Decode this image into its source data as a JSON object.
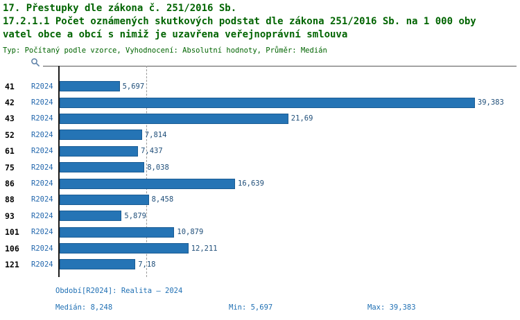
{
  "title": {
    "line1": "17. Přestupky dle zákona č. 251/2016 Sb.",
    "line2": "17.2.1.1 Počet oznámených skutkových podstat dle zákona 251/2016 Sb. na 1 000 oby",
    "line3": "vatel obce a obcí s nimiž je uzavřena veřejnoprávní smlouva",
    "meta": "Typ: Počítaný podle vzorce, Vyhodnocení: Absolutní hodnoty, Průměr: Medián"
  },
  "chart_data": {
    "type": "bar",
    "orientation": "horizontal",
    "title": "17.2.1.1 Počet oznámených skutkových podstat dle zákona 251/2016 Sb. na 1 000 obyvatel obce a obcí s nimiž je uzavřena veřejnoprávní smlouva",
    "categories": [
      "41",
      "42",
      "43",
      "52",
      "61",
      "75",
      "86",
      "88",
      "93",
      "101",
      "106",
      "121"
    ],
    "series": [
      {
        "name": "R2024",
        "values": [
          5.697,
          39.383,
          21.69,
          7.814,
          7.437,
          8.038,
          16.639,
          8.458,
          5.879,
          10.879,
          12.211,
          7.18
        ]
      }
    ],
    "value_labels": [
      "5,697",
      "39,383",
      "21,69",
      "7,814",
      "7,437",
      "8,038",
      "16,639",
      "8,458",
      "5,879",
      "10,879",
      "12,211",
      "7,18"
    ],
    "xlim": [
      0,
      43.4
    ],
    "median": 8.248,
    "median_line_style": "dashed",
    "bar_color": "#2574b5",
    "legend_position": "none",
    "grid": "off"
  },
  "footer": {
    "period": "Období[R2024]: Realita – 2024",
    "median": "Medián: 8,248",
    "min": "Min: 5,697",
    "max": "Max: 39,383"
  }
}
